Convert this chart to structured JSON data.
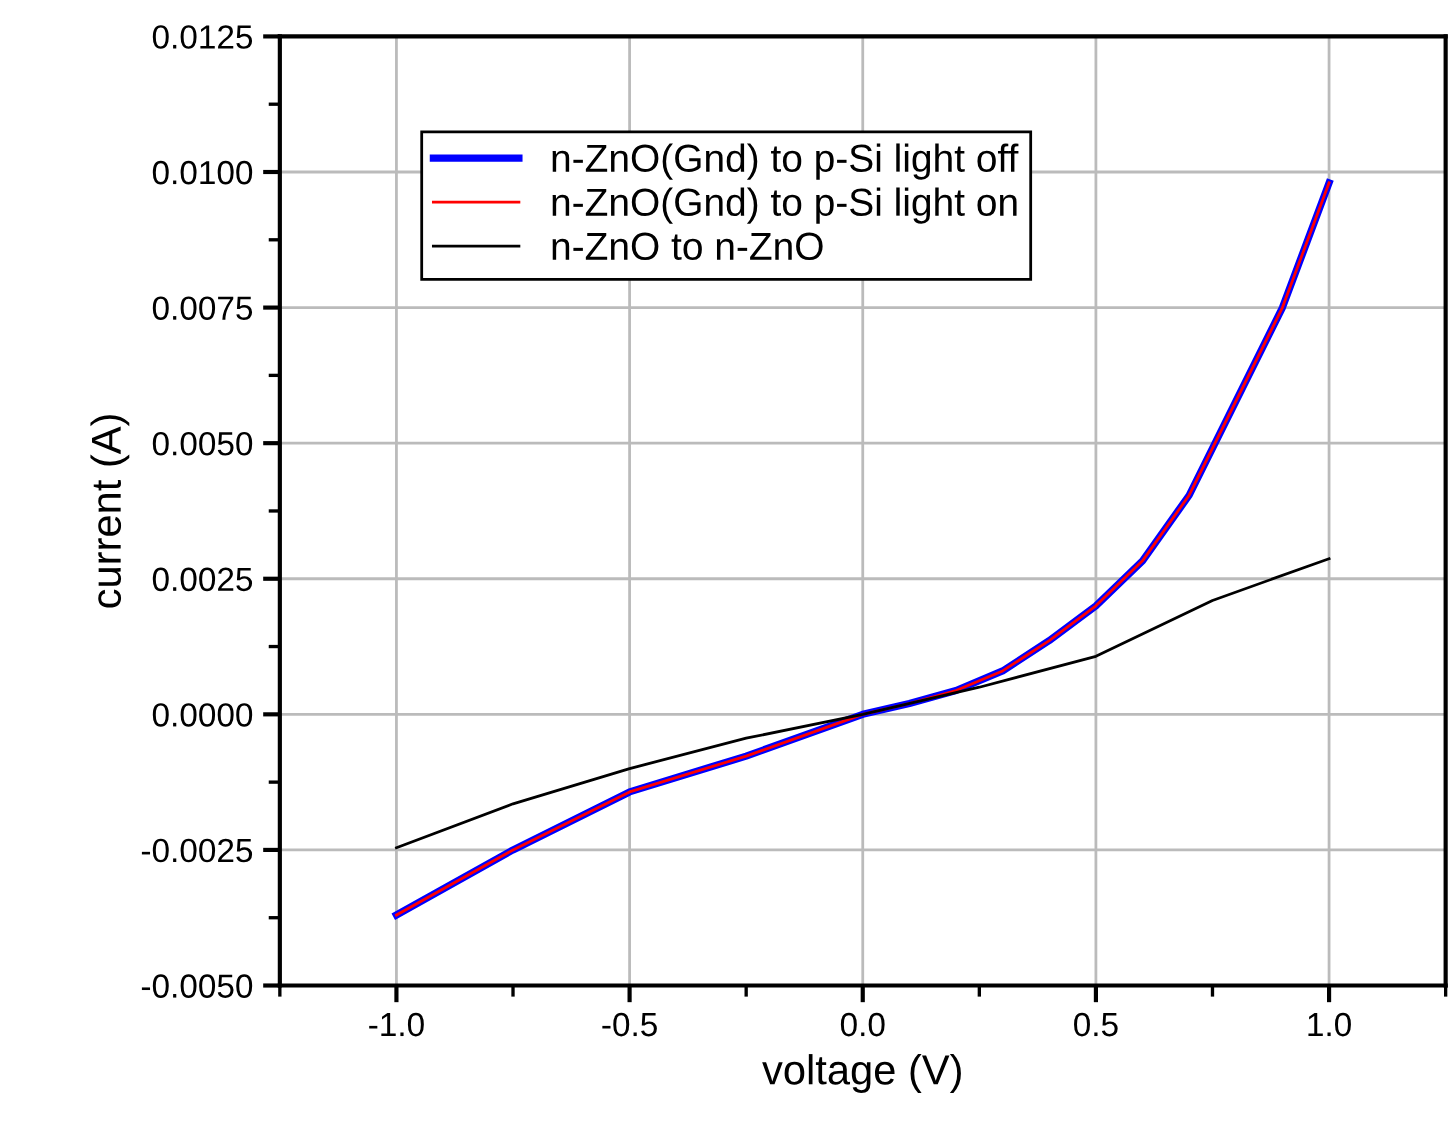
{
  "chart_data": {
    "type": "line",
    "xlabel": "voltage (V)",
    "ylabel": "current (A)",
    "x": [
      -1.0,
      -0.75,
      -0.5,
      -0.25,
      0.0,
      0.1,
      0.2,
      0.3,
      0.4,
      0.5,
      0.6,
      0.7,
      0.8,
      0.9,
      1.0
    ],
    "series": [
      {
        "name": "n-ZnO(Gnd) to p-Si light off",
        "color": "#0000ff",
        "values": [
          -0.0037,
          -0.0025,
          -0.00143,
          -0.00077,
          0.0,
          0.0002,
          0.00044,
          0.0008,
          0.00136,
          0.002,
          0.00283,
          0.00404,
          0.00577,
          0.0075,
          0.0098
        ]
      },
      {
        "name": "n-ZnO(Gnd) to p-Si light on",
        "color": "#ff0000",
        "values": [
          -0.0037,
          -0.0025,
          -0.00143,
          -0.00077,
          0.0,
          0.0002,
          0.00044,
          0.0008,
          0.00136,
          0.002,
          0.00283,
          0.00404,
          0.00577,
          0.0075,
          0.0098
        ]
      },
      {
        "name": "n-ZnO to n-ZnO",
        "color": "#000000",
        "x": [
          -1.0,
          -0.75,
          -0.5,
          -0.25,
          0.0,
          0.25,
          0.5,
          0.75,
          1.0
        ],
        "values": [
          -0.00246,
          -0.00165,
          -0.001,
          -0.00044,
          0.0,
          0.0005,
          0.00107,
          0.0021,
          0.00287
        ]
      }
    ],
    "xlim": [
      -1.25,
      1.25
    ],
    "ylim": [
      -0.005,
      0.0125
    ],
    "xticks": [
      {
        "value": -1.0,
        "label": "-1.0"
      },
      {
        "value": -0.5,
        "label": "-0.5"
      },
      {
        "value": 0.0,
        "label": "0.0"
      },
      {
        "value": 0.5,
        "label": "0.5"
      },
      {
        "value": 1.0,
        "label": "1.0"
      }
    ],
    "yticks": [
      {
        "value": -0.005,
        "label": "-0.0050"
      },
      {
        "value": -0.0025,
        "label": "-0.0025"
      },
      {
        "value": 0.0,
        "label": "0.0000"
      },
      {
        "value": 0.0025,
        "label": "0.0025"
      },
      {
        "value": 0.005,
        "label": "0.0050"
      },
      {
        "value": 0.0075,
        "label": "0.0075"
      },
      {
        "value": 0.01,
        "label": "0.0100"
      },
      {
        "value": 0.0125,
        "label": "0.0125"
      }
    ],
    "grid": true,
    "legend": "top",
    "marker": "none",
    "line_style": "solid"
  }
}
